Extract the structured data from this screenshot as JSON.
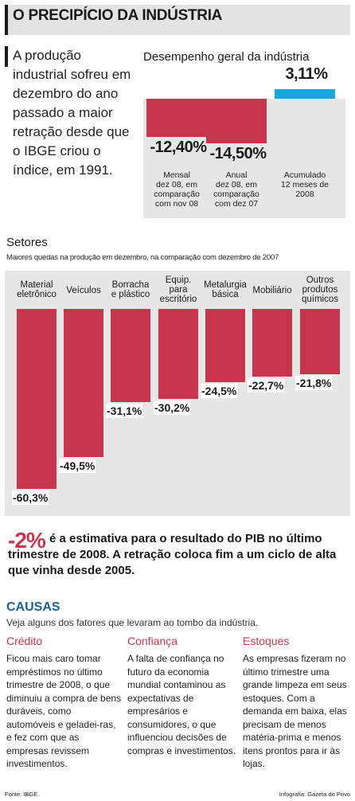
{
  "header": {
    "title": "O PRECIPÍCIO DA INDÚSTRIA"
  },
  "intro": {
    "text": "A produção industrial sofreu em dezembro do ano passado a maior retração desde que o IBGE criou o índice, em 1991."
  },
  "chart_data": [
    {
      "type": "bar",
      "title": "Desempenho geral da indústria",
      "categories": [
        "Mensal dez 08, em comparação com nov 08",
        "Anual dez 08, em comparação com dez 07",
        "Acumulado 12 meses de 2008"
      ],
      "category_lines": [
        [
          "Mensal",
          "dez 08, em",
          "comparação",
          "com nov 08"
        ],
        [
          "Anual",
          "dez 08, em",
          "comparação",
          "com dez 07"
        ],
        [
          "Acumulado",
          "12 meses de",
          "2008"
        ]
      ],
      "values": [
        -12.4,
        -14.5,
        3.11
      ],
      "value_labels": [
        "-12,40%",
        "-14,50%",
        "3,11%"
      ],
      "colors": [
        "#c8364d",
        "#c8364d",
        "#1aa7dd"
      ],
      "unit": "%"
    },
    {
      "type": "bar",
      "title": "Setores",
      "subtitle": "Maiores quedas na produção em dezembro, na comparação com dezembro de 2007",
      "categories": [
        "Material eletrônico",
        "Veículos",
        "Borracha e plástico",
        "Equip. para escritório",
        "Metalurgia básica",
        "Mobiliário",
        "Outros produtos químicos"
      ],
      "category_lines": [
        [
          "Material",
          "eletrônico"
        ],
        [
          "Veículos"
        ],
        [
          "Borracha",
          "e plástico"
        ],
        [
          "Equip.",
          "para",
          "escritório"
        ],
        [
          "Metalurgia",
          "básica"
        ],
        [
          "Mobiliário"
        ],
        [
          "Outros",
          "produtos",
          "químicos"
        ]
      ],
      "values": [
        -60.3,
        -49.5,
        -31.1,
        -30.2,
        -24.5,
        -22.7,
        -21.8
      ],
      "value_labels": [
        "-60,3%",
        "-49,5%",
        "-31,1%",
        "-30,2%",
        "-24,5%",
        "-22,7%",
        "-21,8%"
      ],
      "color": "#c8364d",
      "unit": "%"
    }
  ],
  "pib": {
    "number": "-2%",
    "text": "é a estimativa para o resultado do PIB no último trimestre de 2008. A retração coloca fim a um ciclo de alta que vinha desde 2005."
  },
  "causas": {
    "title": "CAUSAS",
    "subtitle": "Veja alguns dos fatores que levaram ao tombo da indústria.",
    "items": [
      {
        "title": "Crédito",
        "text": "Ficou mais caro tomar empréstimos no último trimestre de 2008, o que diminuiu a compra de bens duráveis, como automóveis e geladei-ras, e fez com que as empresas revissem investimentos."
      },
      {
        "title": "Confiança",
        "text": "A falta de confiança no futuro da economia mundial contaminou as expectativas de empresários e consumidores, o que influenciou decisões de compras e investimentos."
      },
      {
        "title": "Estoques",
        "text": "As empresas fizeram no último trimestre uma grande limpeza em seus estoques. Com a demanda em baixa, elas precisam de menos matéria-prima e menos itens prontos para ir às lojas."
      }
    ]
  },
  "footer": {
    "fonte": "Fonte: IBGE.",
    "credito": "Infografia: Gazeta do Povo"
  }
}
